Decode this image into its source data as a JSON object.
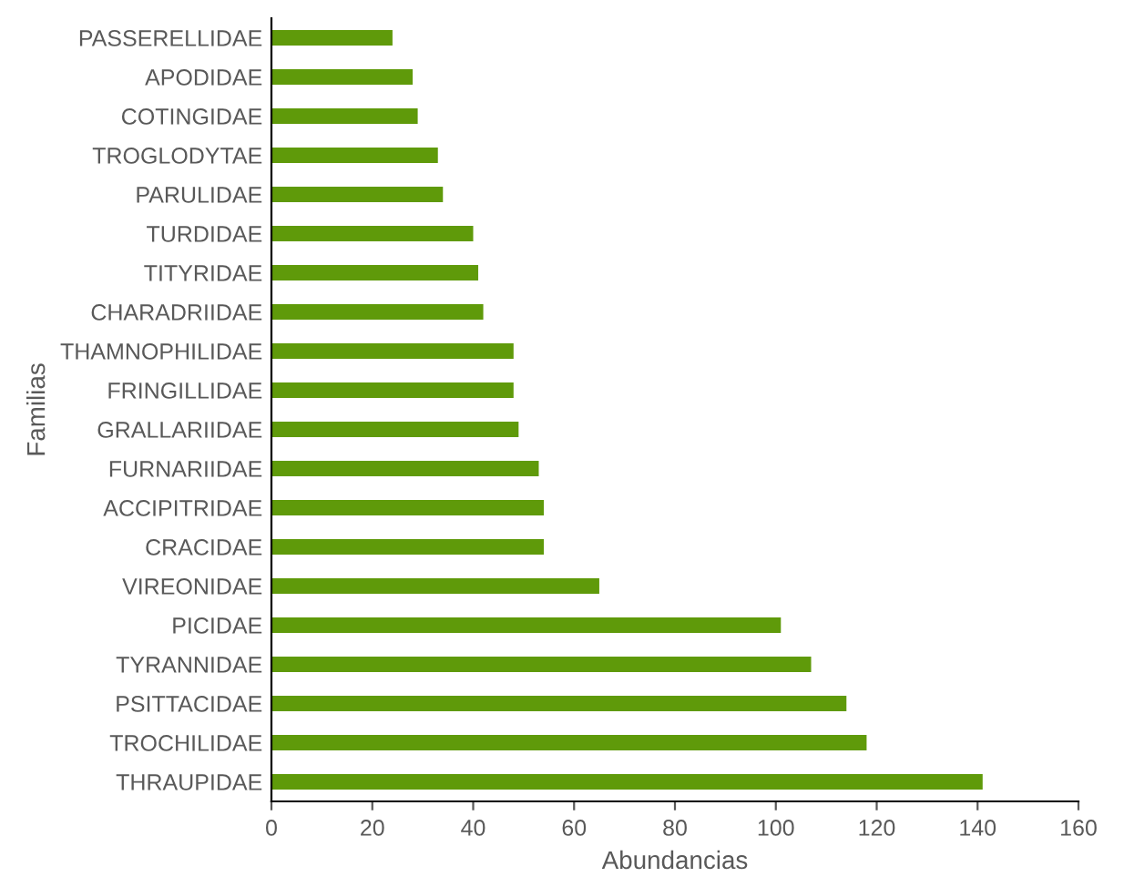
{
  "chart_data": {
    "type": "bar",
    "orientation": "horizontal",
    "xlabel": "Abundancias",
    "ylabel": "Familias",
    "categories": [
      "PASSERELLIDAE",
      "APODIDAE",
      "COTINGIDAE",
      "TROGLODYTAE",
      "PARULIDAE",
      "TURDIDAE",
      "TITYRIDAE",
      "CHARADRIIDAE",
      "THAMNOPHILIDAE",
      "FRINGILLIDAE",
      "GRALLARIIDAE",
      "FURNARIIDAE",
      "ACCIPITRIDAE",
      "CRACIDAE",
      "VIREONIDAE",
      "PICIDAE",
      "TYRANNIDAE",
      "PSITTACIDAE",
      "TROCHILIDAE",
      "THRAUPIDAE"
    ],
    "values": [
      24,
      28,
      29,
      33,
      34,
      40,
      41,
      42,
      48,
      48,
      49,
      53,
      54,
      54,
      65,
      101,
      107,
      114,
      118,
      141
    ],
    "color": "#5f9a0a",
    "xlim": [
      0,
      160
    ],
    "xticks": [
      0,
      20,
      40,
      60,
      80,
      100,
      120,
      140,
      160
    ],
    "grid": false,
    "legend": false
  }
}
